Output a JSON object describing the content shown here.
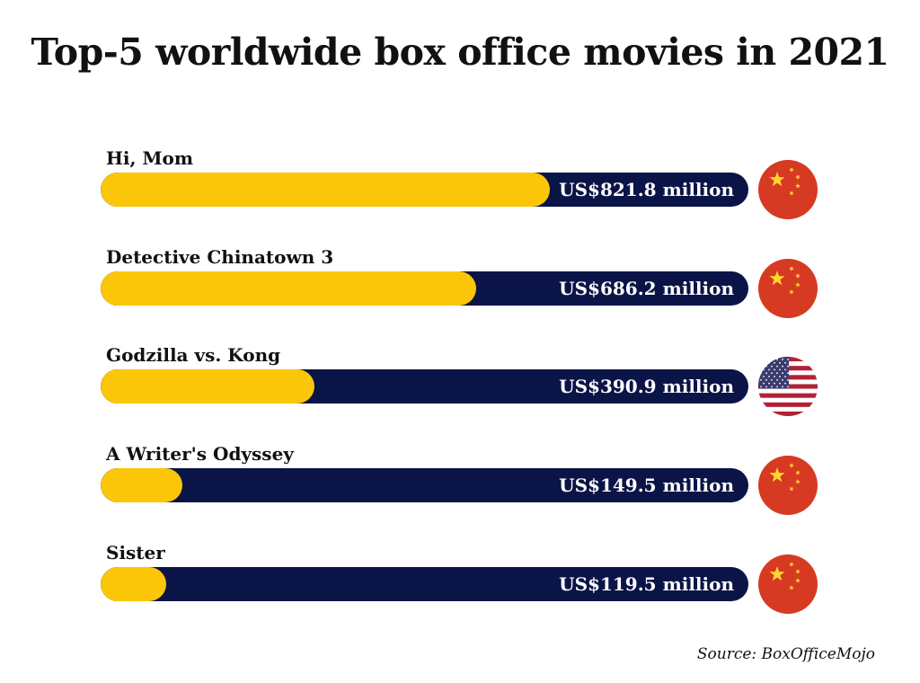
{
  "chart_data": {
    "type": "bar",
    "orientation": "horizontal",
    "title": "Top-5 worldwide box office movies in 2021",
    "categories": [
      "Hi, Mom",
      "Detective Chinatown 3",
      "Godzilla vs. Kong",
      "A Writer's Odyssey",
      "Sister"
    ],
    "values": [
      821.8,
      686.2,
      390.9,
      149.5,
      119.5
    ],
    "value_labels": [
      "US$821.8 million",
      "US$686.2 million",
      "US$390.9 million",
      "US$149.5 million",
      "US$119.5 million"
    ],
    "countries": [
      "china",
      "china",
      "usa",
      "china",
      "china"
    ],
    "unit": "US$ million",
    "xlim": [
      0,
      1185
    ],
    "grid": false,
    "colors": {
      "fill": "#fcc608",
      "track": "#0b1446",
      "china_red": "#d63a22",
      "china_star": "#fcd535",
      "usa_blue": "#3c3b6e",
      "usa_red": "#b22234"
    }
  },
  "source": "Source: BoxOfficeMojo"
}
